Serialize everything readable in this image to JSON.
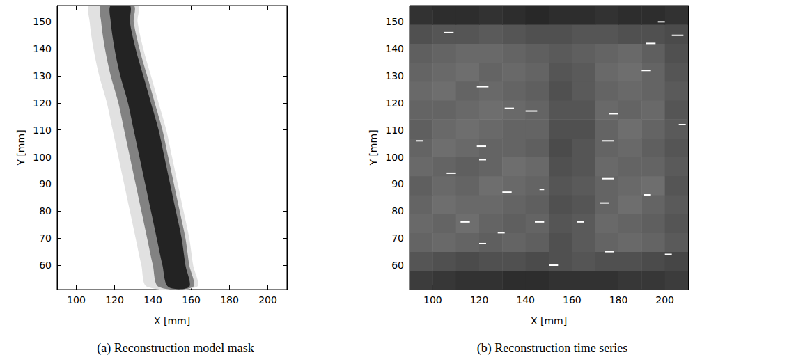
{
  "chart_data": [
    {
      "type": "band",
      "title": "(a) Reconstruction model mask",
      "x_label": "X [mm]",
      "y_label": "Y [mm]",
      "xlim": [
        90,
        210
      ],
      "xticks": [
        100,
        120,
        140,
        160,
        180,
        200
      ],
      "ylim": [
        51,
        156
      ],
      "yticks": [
        60,
        70,
        80,
        90,
        100,
        110,
        120,
        130,
        140,
        150
      ],
      "y": [
        52,
        60,
        70,
        80,
        90,
        100,
        110,
        120,
        130,
        140,
        150,
        156
      ],
      "layers": [
        {
          "gray": 225,
          "left": [
            137,
            134,
            131,
            128,
            125,
            122,
            119,
            116,
            112,
            109,
            107,
            107
          ],
          "right": [
            163,
            161,
            159,
            156,
            153,
            150,
            147,
            143,
            139,
            135,
            132,
            132
          ]
        },
        {
          "gray": 130,
          "left": [
            143,
            140,
            137,
            134,
            131,
            128,
            125,
            122,
            118,
            115,
            113,
            113
          ],
          "right": [
            161,
            159,
            157,
            154,
            151,
            148,
            145,
            141,
            137,
            133,
            130,
            130
          ]
        },
        {
          "gray": 35,
          "left": [
            148,
            145,
            142,
            139,
            136,
            133,
            130,
            127,
            123,
            120,
            118,
            118
          ],
          "right": [
            159,
            157,
            155,
            152,
            149,
            146,
            143,
            139,
            135,
            131,
            128,
            128
          ]
        }
      ]
    },
    {
      "type": "heatmap",
      "title": "(b) Reconstruction time series",
      "x_label": "X [mm]",
      "y_label": "Y [mm]",
      "xlim": [
        90,
        210
      ],
      "xticks": [
        100,
        120,
        140,
        160,
        180,
        200
      ],
      "ylim": [
        51,
        156
      ],
      "yticks": [
        60,
        70,
        80,
        90,
        100,
        110,
        120,
        130,
        140,
        150
      ],
      "x_edges": [
        90,
        100,
        110,
        120,
        130,
        140,
        150,
        160,
        170,
        180,
        190,
        200,
        210
      ],
      "y_edges": [
        51,
        58,
        65,
        72,
        79,
        86,
        93,
        100,
        107,
        114,
        121,
        128,
        135,
        142,
        149,
        156
      ],
      "gray": [
        [
          60,
          55,
          50,
          50,
          45,
          45,
          50,
          50,
          50,
          55,
          55,
          60
        ],
        [
          85,
          80,
          75,
          80,
          80,
          75,
          80,
          85,
          80,
          80,
          75,
          70
        ],
        [
          100,
          105,
          100,
          95,
          100,
          95,
          80,
          90,
          100,
          105,
          100,
          90
        ],
        [
          105,
          100,
          110,
          100,
          95,
          100,
          85,
          90,
          105,
          100,
          95,
          85
        ],
        [
          100,
          110,
          105,
          105,
          100,
          95,
          80,
          85,
          100,
          110,
          100,
          90
        ],
        [
          95,
          105,
          100,
          110,
          105,
          100,
          85,
          90,
          100,
          105,
          110,
          85
        ],
        [
          105,
          100,
          95,
          100,
          110,
          105,
          80,
          85,
          105,
          100,
          100,
          90
        ],
        [
          100,
          110,
          105,
          100,
          100,
          95,
          75,
          85,
          100,
          105,
          95,
          85
        ],
        [
          95,
          105,
          110,
          105,
          100,
          100,
          80,
          80,
          100,
          110,
          100,
          90
        ],
        [
          100,
          100,
          105,
          110,
          105,
          100,
          85,
          85,
          105,
          100,
          105,
          85
        ],
        [
          105,
          110,
          100,
          105,
          100,
          95,
          80,
          90,
          100,
          105,
          100,
          90
        ],
        [
          100,
          105,
          110,
          100,
          105,
          100,
          85,
          90,
          105,
          110,
          100,
          85
        ],
        [
          95,
          100,
          105,
          105,
          100,
          95,
          90,
          95,
          100,
          105,
          95,
          80
        ],
        [
          80,
          85,
          85,
          90,
          85,
          80,
          80,
          85,
          85,
          80,
          80,
          75
        ],
        [
          50,
          45,
          45,
          50,
          45,
          40,
          45,
          45,
          50,
          45,
          45,
          50
        ]
      ],
      "streaks": [
        [
          105,
          109,
          146
        ],
        [
          203,
          208,
          145
        ],
        [
          192,
          196,
          142
        ],
        [
          197,
          200,
          150
        ],
        [
          190,
          194,
          132
        ],
        [
          119,
          124,
          126
        ],
        [
          140,
          145,
          117
        ],
        [
          176,
          180,
          116
        ],
        [
          173,
          178,
          106
        ],
        [
          206,
          209,
          112
        ],
        [
          119,
          123,
          104
        ],
        [
          120,
          123,
          99
        ],
        [
          106,
          110,
          94
        ],
        [
          173,
          178,
          92
        ],
        [
          130,
          134,
          87
        ],
        [
          146,
          148,
          88
        ],
        [
          191,
          194,
          86
        ],
        [
          172,
          176,
          83
        ],
        [
          93,
          96,
          106
        ],
        [
          112,
          116,
          76
        ],
        [
          144,
          148,
          76
        ],
        [
          162,
          165,
          76
        ],
        [
          200,
          203,
          64
        ],
        [
          174,
          178,
          65
        ],
        [
          120,
          123,
          68
        ],
        [
          128,
          131,
          72
        ],
        [
          150,
          154,
          60
        ],
        [
          131,
          135,
          118
        ]
      ]
    }
  ]
}
